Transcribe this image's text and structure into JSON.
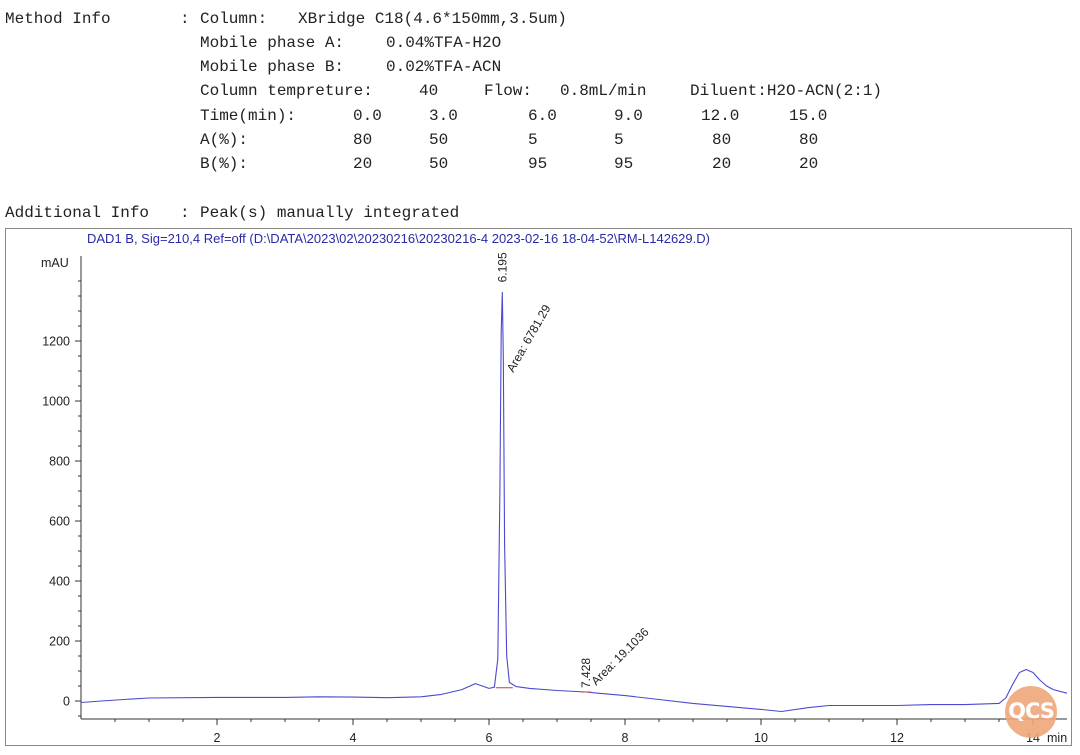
{
  "method": {
    "label": "Method Info",
    "sep": ":",
    "column_label": "Column:",
    "column_value": "XBridge C18(4.6*150mm,3.5um)",
    "phase_a_label": "Mobile phase A:",
    "phase_a_value": "0.04%TFA-H2O",
    "phase_b_label": "Mobile phase B:",
    "phase_b_value": "0.02%TFA-ACN",
    "temp_label": "Column tempreture:",
    "temp_value": "40",
    "flow_label": "Flow:",
    "flow_value": "0.8mL/min",
    "diluent": "Diluent:H2O-ACN(2:1)",
    "gradient": {
      "time_label": "Time(min):",
      "a_label": "A(%):",
      "b_label": "B(%):",
      "time": [
        "0.0",
        "3.0",
        "6.0",
        "9.0",
        "12.0",
        "15.0"
      ],
      "a": [
        "80",
        "50",
        "5",
        "5",
        "80",
        "80"
      ],
      "b": [
        "20",
        "50",
        "95",
        "95",
        "20",
        "20"
      ]
    }
  },
  "additional": {
    "label": "Additional Info",
    "sep": ":",
    "value": "Peak(s) manually integrated"
  },
  "watermark": "QCS",
  "chart_data": {
    "type": "line",
    "title": "DAD1 B, Sig=210,4 Ref=off (D:\\DATA\\2023\\02\\20230216\\20230216-4 2023-02-16 18-04-52\\RM-L142629.D)",
    "ylabel": "mAU",
    "xlabel": "min",
    "xlim": [
      0,
      14.5
    ],
    "ylim": [
      -80,
      1450
    ],
    "x_ticks": [
      2,
      4,
      6,
      8,
      10,
      12,
      14
    ],
    "y_ticks": [
      0,
      200,
      400,
      600,
      800,
      1000,
      1200
    ],
    "line_color": "#4a4ad0",
    "series": [
      {
        "x": [
          0.0,
          0.3,
          0.7,
          1.0,
          2.0,
          3.0,
          3.5,
          4.0,
          4.5,
          5.0,
          5.3,
          5.6,
          5.8,
          5.9,
          6.0,
          6.08,
          6.13,
          6.16,
          6.18,
          6.195,
          6.21,
          6.23,
          6.26,
          6.3,
          6.4,
          6.6,
          7.0,
          7.428,
          7.6,
          8.0,
          8.5,
          9.0,
          9.5,
          10.0,
          10.3,
          10.7,
          11.0,
          12.0,
          12.5,
          13.0,
          13.5,
          13.6,
          13.7,
          13.8,
          13.9,
          14.0,
          14.1,
          14.2,
          14.3,
          14.5
        ],
        "y": [
          -5,
          0,
          6,
          10,
          12,
          12,
          14,
          13,
          11,
          14,
          22,
          38,
          58,
          50,
          42,
          46,
          140,
          700,
          1230,
          1362,
          1150,
          520,
          150,
          62,
          48,
          42,
          35,
          30,
          26,
          18,
          5,
          -8,
          -18,
          -28,
          -35,
          -22,
          -15,
          -15,
          -12,
          -12,
          -8,
          10,
          55,
          95,
          105,
          95,
          70,
          50,
          38,
          26
        ]
      }
    ],
    "peaks": [
      {
        "time": "6.195",
        "area_label": "Area: 6781.29",
        "x": 6.195,
        "y": 1362
      },
      {
        "time": "7.428",
        "area_label": "Area: 19.1036",
        "x": 7.428,
        "y": 30
      }
    ]
  }
}
